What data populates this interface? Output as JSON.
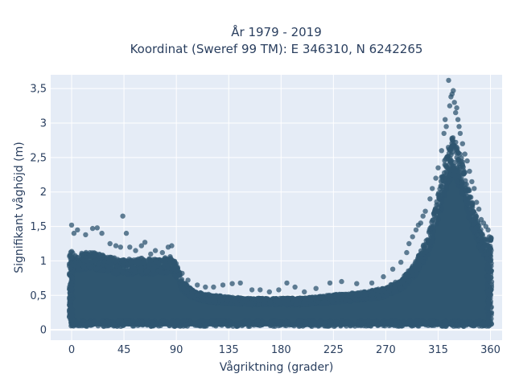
{
  "chart_data": {
    "type": "scatter",
    "title_line1": "År 1979 - 2019",
    "title_line2": "Koordinat (Sweref 99 TM): E 346310, N 6242265",
    "xlabel": "Vågriktning (grader)",
    "ylabel": "Signifikant våghöjd (m)",
    "xlim": [
      -18,
      370
    ],
    "ylim": [
      -0.15,
      3.7
    ],
    "xticks": [
      0,
      45,
      90,
      135,
      180,
      225,
      270,
      315,
      360
    ],
    "xtick_labels": [
      "0",
      "45",
      "90",
      "135",
      "180",
      "225",
      "270",
      "315",
      "360"
    ],
    "yticks": [
      0,
      0.5,
      1,
      1.5,
      2,
      2.5,
      3,
      3.5
    ],
    "ytick_labels": [
      "0",
      "0,5",
      "1",
      "1,5",
      "2",
      "2,5",
      "3",
      "3,5"
    ],
    "grid": true,
    "plot_background": "#e5ecf6",
    "marker_color": "#2f5670",
    "marker_opacity": 0.75,
    "dense_band": [
      {
        "x": 0,
        "low": 0.05,
        "high": 1.05
      },
      {
        "x": 10,
        "low": 0.05,
        "high": 1.1
      },
      {
        "x": 20,
        "low": 0.05,
        "high": 1.1
      },
      {
        "x": 30,
        "low": 0.05,
        "high": 1.05
      },
      {
        "x": 45,
        "low": 0.05,
        "high": 1.0
      },
      {
        "x": 60,
        "low": 0.05,
        "high": 1.02
      },
      {
        "x": 75,
        "low": 0.05,
        "high": 1.0
      },
      {
        "x": 85,
        "low": 0.05,
        "high": 1.05
      },
      {
        "x": 90,
        "low": 0.05,
        "high": 0.95
      },
      {
        "x": 95,
        "low": 0.05,
        "high": 0.7
      },
      {
        "x": 105,
        "low": 0.05,
        "high": 0.55
      },
      {
        "x": 120,
        "low": 0.05,
        "high": 0.5
      },
      {
        "x": 135,
        "low": 0.05,
        "high": 0.47
      },
      {
        "x": 150,
        "low": 0.05,
        "high": 0.45
      },
      {
        "x": 165,
        "low": 0.05,
        "high": 0.45
      },
      {
        "x": 180,
        "low": 0.05,
        "high": 0.45
      },
      {
        "x": 195,
        "low": 0.05,
        "high": 0.45
      },
      {
        "x": 210,
        "low": 0.05,
        "high": 0.47
      },
      {
        "x": 225,
        "low": 0.05,
        "high": 0.5
      },
      {
        "x": 240,
        "low": 0.05,
        "high": 0.52
      },
      {
        "x": 255,
        "low": 0.05,
        "high": 0.55
      },
      {
        "x": 270,
        "low": 0.05,
        "high": 0.6
      },
      {
        "x": 285,
        "low": 0.05,
        "high": 0.75
      },
      {
        "x": 295,
        "low": 0.05,
        "high": 0.95
      },
      {
        "x": 305,
        "low": 0.05,
        "high": 1.3
      },
      {
        "x": 312,
        "low": 0.05,
        "high": 1.7
      },
      {
        "x": 318,
        "low": 0.05,
        "high": 2.2
      },
      {
        "x": 323,
        "low": 0.05,
        "high": 2.6
      },
      {
        "x": 327,
        "low": 0.05,
        "high": 2.75
      },
      {
        "x": 332,
        "low": 0.05,
        "high": 2.65
      },
      {
        "x": 338,
        "low": 0.05,
        "high": 2.3
      },
      {
        "x": 343,
        "low": 0.05,
        "high": 1.9
      },
      {
        "x": 350,
        "low": 0.05,
        "high": 1.5
      },
      {
        "x": 356,
        "low": 0.05,
        "high": 1.3
      },
      {
        "x": 360,
        "low": 0.05,
        "high": 1.2
      }
    ],
    "outlier_points": [
      [
        0,
        1.52
      ],
      [
        2,
        1.4
      ],
      [
        5,
        1.45
      ],
      [
        12,
        1.38
      ],
      [
        18,
        1.47
      ],
      [
        22,
        1.48
      ],
      [
        26,
        1.4
      ],
      [
        33,
        1.25
      ],
      [
        38,
        1.22
      ],
      [
        42,
        1.2
      ],
      [
        44,
        1.65
      ],
      [
        47,
        1.4
      ],
      [
        50,
        1.2
      ],
      [
        55,
        1.15
      ],
      [
        60,
        1.22
      ],
      [
        63,
        1.27
      ],
      [
        68,
        1.1
      ],
      [
        72,
        1.15
      ],
      [
        78,
        1.12
      ],
      [
        83,
        1.2
      ],
      [
        86,
        1.22
      ],
      [
        95,
        0.82
      ],
      [
        100,
        0.72
      ],
      [
        108,
        0.65
      ],
      [
        115,
        0.62
      ],
      [
        122,
        0.62
      ],
      [
        130,
        0.65
      ],
      [
        138,
        0.67
      ],
      [
        145,
        0.68
      ],
      [
        155,
        0.58
      ],
      [
        162,
        0.58
      ],
      [
        170,
        0.55
      ],
      [
        178,
        0.58
      ],
      [
        185,
        0.68
      ],
      [
        192,
        0.62
      ],
      [
        200,
        0.55
      ],
      [
        210,
        0.6
      ],
      [
        222,
        0.68
      ],
      [
        232,
        0.7
      ],
      [
        245,
        0.67
      ],
      [
        258,
        0.68
      ],
      [
        268,
        0.77
      ],
      [
        276,
        0.88
      ],
      [
        283,
        0.98
      ],
      [
        288,
        1.12
      ],
      [
        290,
        1.25
      ],
      [
        293,
        1.35
      ],
      [
        296,
        1.45
      ],
      [
        298,
        1.52
      ],
      [
        300,
        1.55
      ],
      [
        302,
        1.65
      ],
      [
        304,
        1.72
      ],
      [
        308,
        1.9
      ],
      [
        310,
        2.05
      ],
      [
        313,
        2.2
      ],
      [
        315,
        2.35
      ],
      [
        318,
        2.6
      ],
      [
        320,
        2.85
      ],
      [
        321,
        3.05
      ],
      [
        322,
        2.95
      ],
      [
        324,
        3.62
      ],
      [
        325,
        3.25
      ],
      [
        326,
        3.38
      ],
      [
        327,
        3.42
      ],
      [
        328,
        3.47
      ],
      [
        329,
        3.3
      ],
      [
        330,
        3.15
      ],
      [
        331,
        3.22
      ],
      [
        332,
        3.05
      ],
      [
        333,
        2.95
      ],
      [
        334,
        2.85
      ],
      [
        336,
        2.7
      ],
      [
        338,
        2.55
      ],
      [
        340,
        2.45
      ],
      [
        342,
        2.3
      ],
      [
        344,
        2.15
      ],
      [
        346,
        2.05
      ],
      [
        348,
        1.85
      ],
      [
        350,
        1.75
      ],
      [
        352,
        1.6
      ],
      [
        354,
        1.55
      ],
      [
        356,
        1.5
      ],
      [
        358,
        1.45
      ],
      [
        359,
        1.35
      ]
    ]
  }
}
